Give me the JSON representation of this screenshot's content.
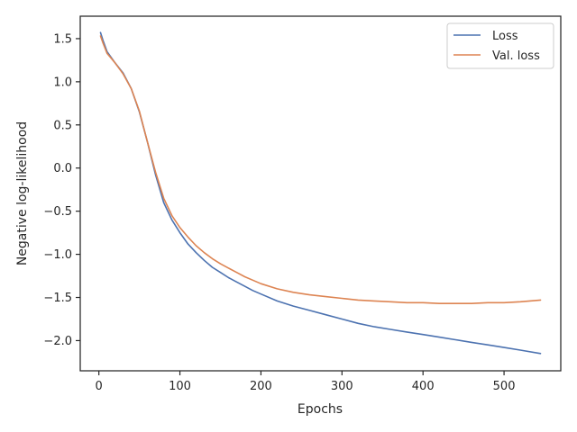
{
  "chart_data": {
    "type": "line",
    "title": "",
    "xlabel": "Epochs",
    "ylabel": "Negative log-likelihood",
    "xlim": [
      -23,
      570
    ],
    "ylim": [
      -2.35,
      1.76
    ],
    "xticks": [
      0,
      100,
      200,
      300,
      400,
      500
    ],
    "yticks": [
      -2.0,
      -1.5,
      -1.0,
      -0.5,
      0.0,
      0.5,
      1.0,
      1.5
    ],
    "xtick_labels": [
      "0",
      "100",
      "200",
      "300",
      "400",
      "500"
    ],
    "ytick_labels": [
      "−2.0",
      "−1.5",
      "−1.0",
      "−0.5",
      "0.0",
      "0.5",
      "1.0",
      "1.5"
    ],
    "grid": false,
    "legend_position": "top-right",
    "series": [
      {
        "name": "Loss",
        "color": "#4c72b0",
        "x": [
          2,
          5,
          10,
          20,
          30,
          40,
          50,
          60,
          70,
          80,
          90,
          100,
          110,
          120,
          130,
          140,
          150,
          160,
          170,
          180,
          190,
          200,
          220,
          240,
          260,
          280,
          300,
          320,
          340,
          360,
          380,
          400,
          420,
          440,
          460,
          480,
          500,
          520,
          545
        ],
        "y": [
          1.57,
          1.48,
          1.35,
          1.22,
          1.1,
          0.92,
          0.65,
          0.3,
          -0.08,
          -0.4,
          -0.6,
          -0.75,
          -0.88,
          -0.98,
          -1.07,
          -1.15,
          -1.21,
          -1.27,
          -1.32,
          -1.37,
          -1.42,
          -1.46,
          -1.54,
          -1.6,
          -1.65,
          -1.7,
          -1.75,
          -1.8,
          -1.84,
          -1.87,
          -1.9,
          -1.93,
          -1.96,
          -1.99,
          -2.02,
          -2.05,
          -2.08,
          -2.11,
          -2.15
        ]
      },
      {
        "name": "Val. loss",
        "color": "#dd8452",
        "x": [
          2,
          5,
          10,
          20,
          30,
          40,
          50,
          60,
          70,
          80,
          90,
          100,
          110,
          120,
          130,
          140,
          150,
          160,
          170,
          180,
          190,
          200,
          220,
          240,
          260,
          280,
          300,
          320,
          340,
          360,
          380,
          400,
          420,
          440,
          460,
          480,
          500,
          520,
          545
        ],
        "y": [
          1.53,
          1.45,
          1.33,
          1.22,
          1.09,
          0.92,
          0.66,
          0.3,
          -0.05,
          -0.35,
          -0.55,
          -0.69,
          -0.8,
          -0.9,
          -0.98,
          -1.05,
          -1.11,
          -1.16,
          -1.21,
          -1.26,
          -1.3,
          -1.34,
          -1.4,
          -1.44,
          -1.47,
          -1.49,
          -1.51,
          -1.53,
          -1.54,
          -1.55,
          -1.56,
          -1.56,
          -1.57,
          -1.57,
          -1.57,
          -1.56,
          -1.56,
          -1.55,
          -1.53
        ]
      }
    ]
  }
}
